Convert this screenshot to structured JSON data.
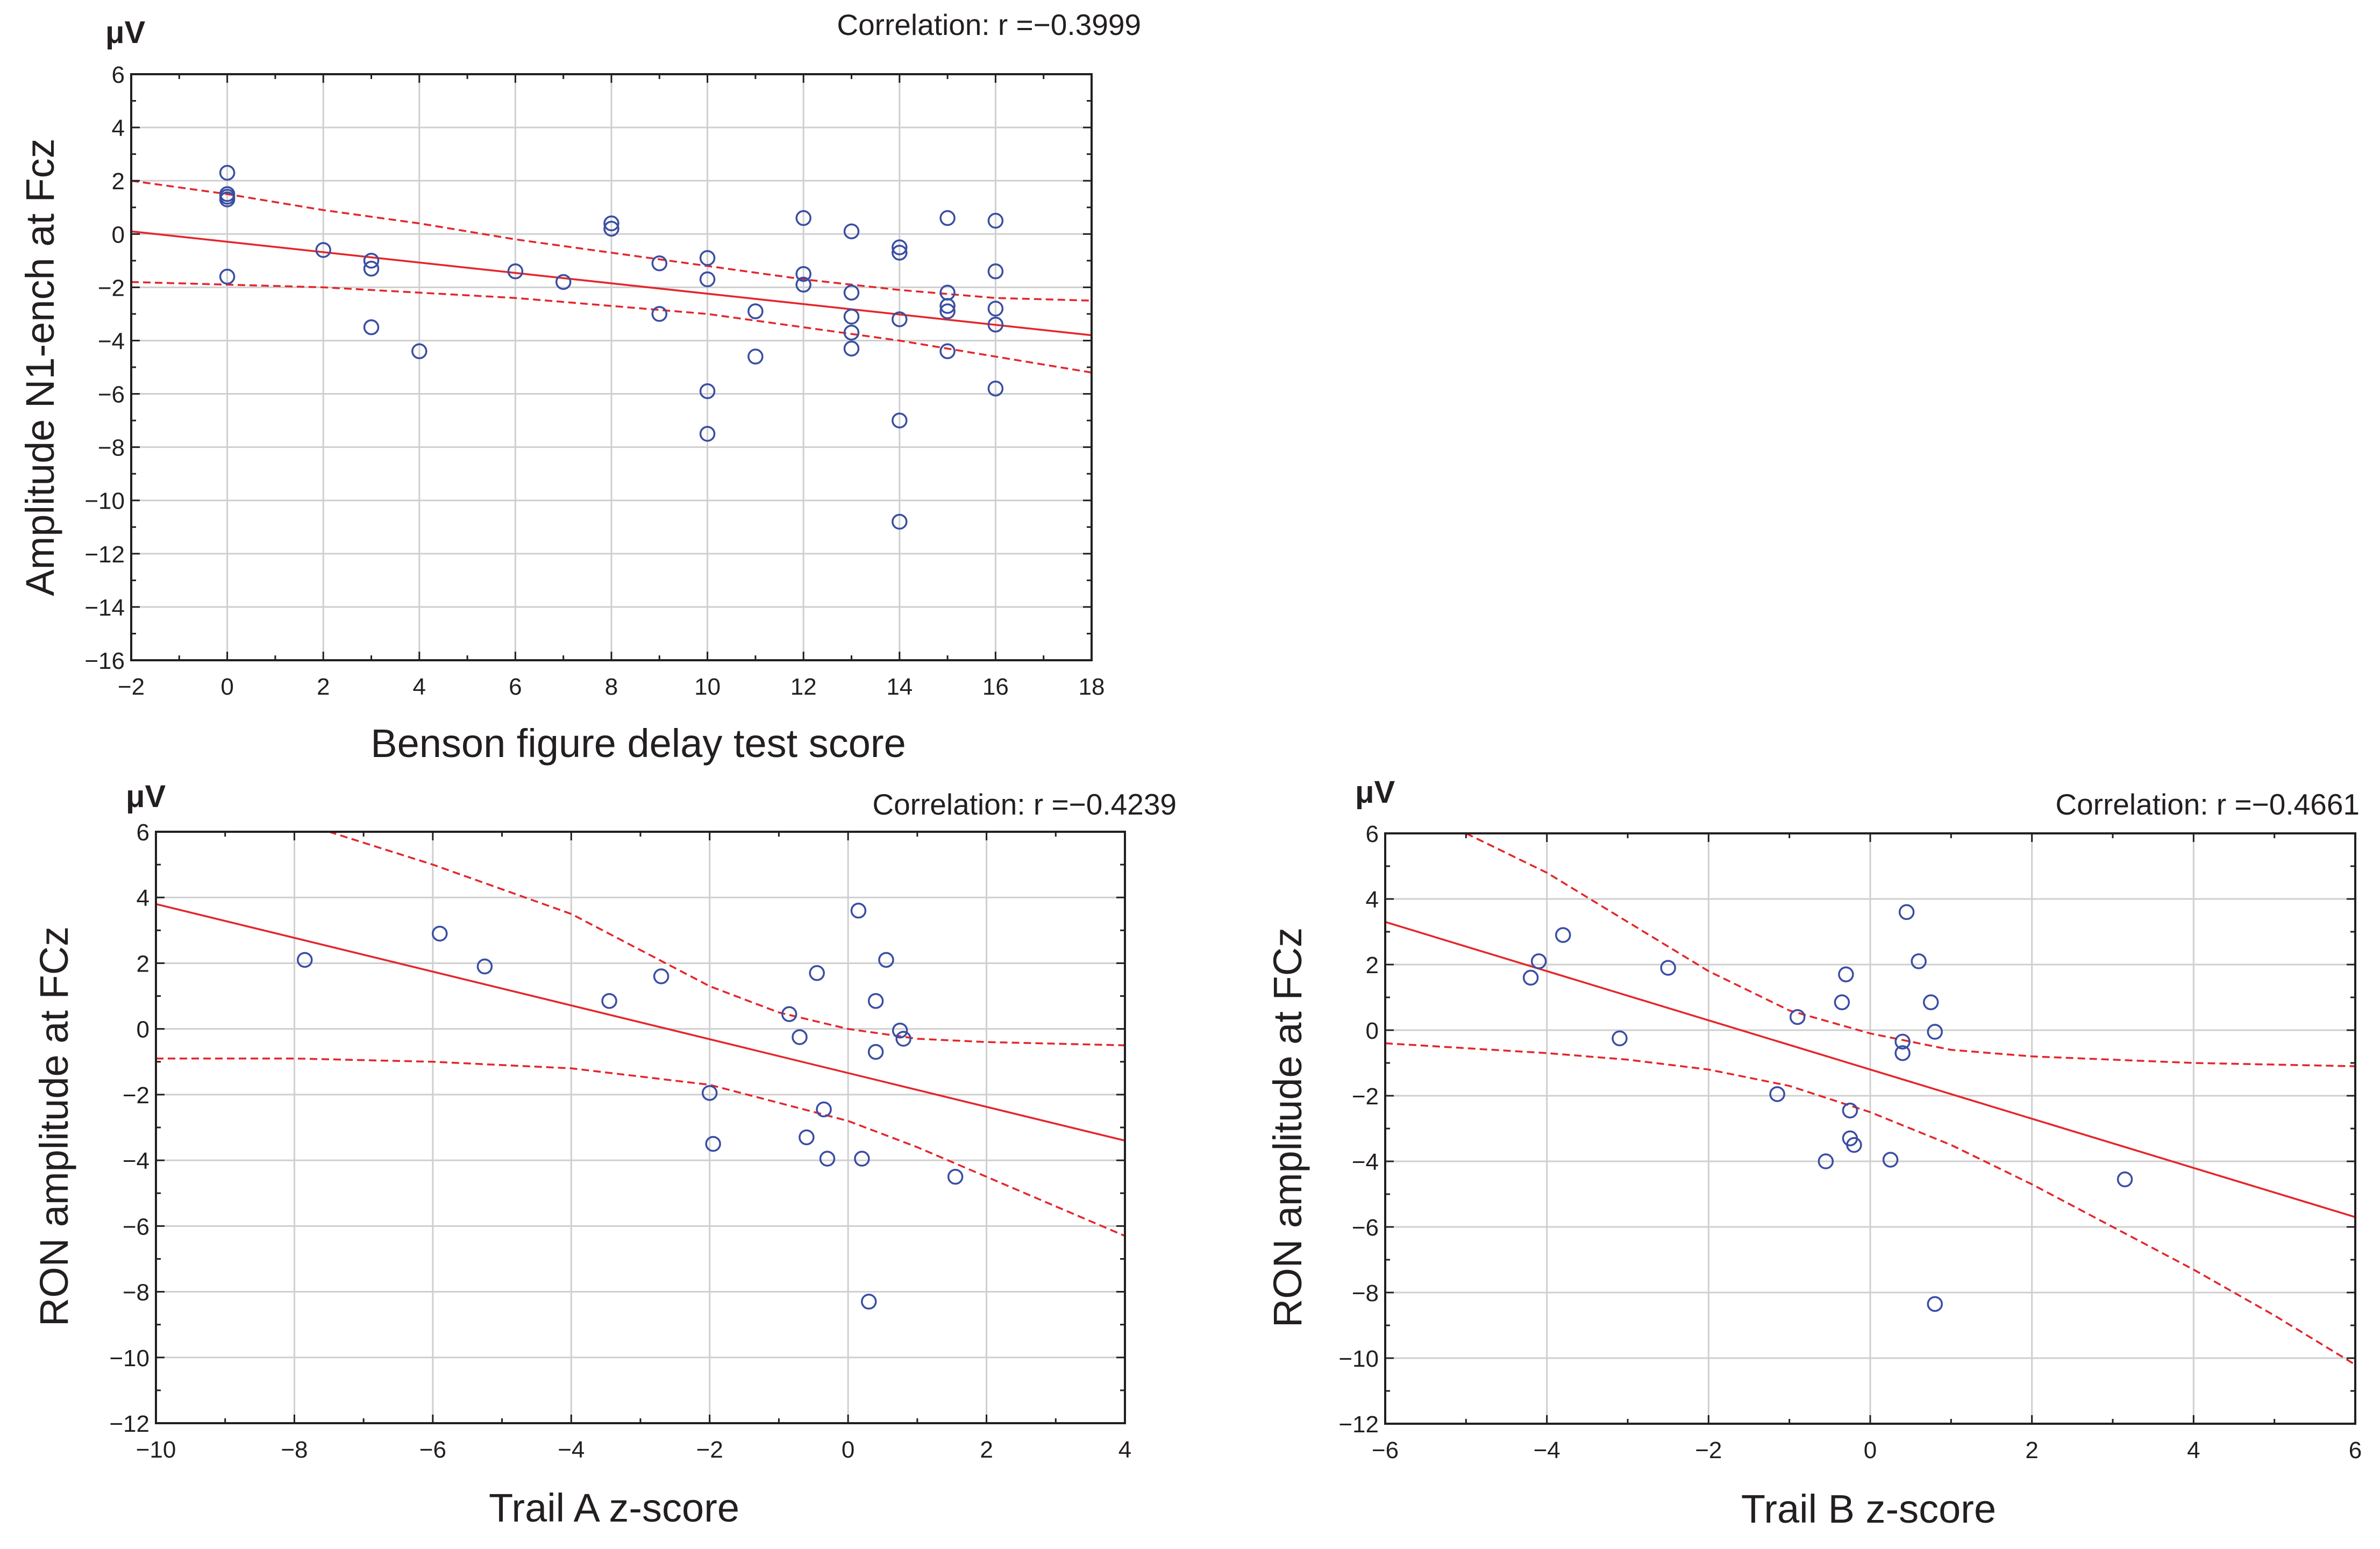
{
  "colors": {
    "point": "#3a4ea3",
    "fit": "#e4262b",
    "grid": "#cfcfcf",
    "axis": "#231f20"
  },
  "chart_data": [
    {
      "type": "scatter",
      "id": "benson",
      "unit": "μV",
      "correlation": "Correlation: r =−0.3999",
      "xlabel": "Benson figure delay test score",
      "ylabel": "Amplitude N1-ench at Fcz",
      "xlim": [
        -2,
        18
      ],
      "ylim": [
        -16,
        6
      ],
      "xticks": [
        -2,
        0,
        2,
        4,
        6,
        8,
        10,
        12,
        14,
        16,
        18
      ],
      "yticks": [
        -16,
        -14,
        -12,
        -10,
        -8,
        -6,
        -4,
        -2,
        0,
        2,
        4,
        6
      ],
      "xtick_labels": [
        "−2",
        "0",
        "2",
        "4",
        "6",
        "8",
        "10",
        "12",
        "14",
        "16",
        "18"
      ],
      "ytick_labels": [
        "−16",
        "−14",
        "−12",
        "−10",
        "−8",
        "−6",
        "−4",
        "−2",
        "0",
        "2",
        "4",
        "6"
      ],
      "fit_line": [
        [
          -2,
          0.1
        ],
        [
          18,
          -3.8
        ]
      ],
      "ci_upper": [
        [
          -2,
          2.0
        ],
        [
          0,
          1.5
        ],
        [
          2,
          0.9
        ],
        [
          4,
          0.4
        ],
        [
          6,
          -0.2
        ],
        [
          8,
          -0.7
        ],
        [
          10,
          -1.2
        ],
        [
          12,
          -1.7
        ],
        [
          14,
          -2.1
        ],
        [
          16,
          -2.4
        ],
        [
          18,
          -2.5
        ]
      ],
      "ci_lower": [
        [
          -2,
          -1.8
        ],
        [
          0,
          -1.9
        ],
        [
          2,
          -2.0
        ],
        [
          4,
          -2.2
        ],
        [
          6,
          -2.4
        ],
        [
          8,
          -2.7
        ],
        [
          10,
          -3.0
        ],
        [
          12,
          -3.5
        ],
        [
          14,
          -4.0
        ],
        [
          16,
          -4.6
        ],
        [
          18,
          -5.2
        ]
      ],
      "points": [
        [
          0,
          2.3
        ],
        [
          0,
          1.5
        ],
        [
          0,
          1.3
        ],
        [
          0,
          1.4
        ],
        [
          0,
          -1.6
        ],
        [
          2,
          -0.6
        ],
        [
          3,
          -1.0
        ],
        [
          3,
          -1.3
        ],
        [
          3,
          -3.5
        ],
        [
          4,
          -4.4
        ],
        [
          6,
          -1.4
        ],
        [
          7,
          -1.8
        ],
        [
          8,
          0.4
        ],
        [
          8,
          0.2
        ],
        [
          9,
          -1.1
        ],
        [
          9,
          -3.0
        ],
        [
          10,
          -0.9
        ],
        [
          10,
          -1.7
        ],
        [
          10,
          -5.9
        ],
        [
          10,
          -7.5
        ],
        [
          11,
          -2.9
        ],
        [
          11,
          -4.6
        ],
        [
          12,
          0.6
        ],
        [
          12,
          -1.5
        ],
        [
          12,
          -1.9
        ],
        [
          13,
          0.1
        ],
        [
          13,
          -2.2
        ],
        [
          13,
          -3.1
        ],
        [
          13,
          -3.7
        ],
        [
          13,
          -4.3
        ],
        [
          14,
          -0.5
        ],
        [
          14,
          -0.7
        ],
        [
          14,
          -3.2
        ],
        [
          14,
          -7.0
        ],
        [
          14,
          -10.8
        ],
        [
          15,
          0.6
        ],
        [
          15,
          -2.2
        ],
        [
          15,
          -2.7
        ],
        [
          15,
          -2.9
        ],
        [
          15,
          -4.4
        ],
        [
          16,
          0.5
        ],
        [
          16,
          -1.4
        ],
        [
          16,
          -2.8
        ],
        [
          16,
          -3.4
        ],
        [
          16,
          -5.8
        ]
      ]
    },
    {
      "type": "scatter",
      "id": "trailA",
      "unit": "μV",
      "correlation": "Correlation: r =−0.4239",
      "xlabel": "Trail A z-score",
      "ylabel": "RON amplitude at FCz",
      "xlim": [
        -10,
        4
      ],
      "ylim": [
        -12,
        6
      ],
      "xticks": [
        -10,
        -8,
        -6,
        -4,
        -2,
        0,
        2,
        4
      ],
      "yticks": [
        -12,
        -10,
        -8,
        -6,
        -4,
        -2,
        0,
        2,
        4,
        6
      ],
      "xtick_labels": [
        "−10",
        "−8",
        "−6",
        "−4",
        "−2",
        "0",
        "2",
        "4"
      ],
      "ytick_labels": [
        "−12",
        "−10",
        "−8",
        "−6",
        "−4",
        "−2",
        "0",
        "2",
        "4",
        "6"
      ],
      "fit_line": [
        [
          -10,
          3.8
        ],
        [
          4,
          -3.4
        ]
      ],
      "ci_upper": [
        [
          -7.5,
          6.0
        ],
        [
          -6,
          5.0
        ],
        [
          -4,
          3.5
        ],
        [
          -2,
          1.3
        ],
        [
          -1,
          0.5
        ],
        [
          0,
          0.0
        ],
        [
          1,
          -0.3
        ],
        [
          2,
          -0.4
        ],
        [
          4,
          -0.5
        ]
      ],
      "ci_lower": [
        [
          -10,
          -0.9
        ],
        [
          -8,
          -0.9
        ],
        [
          -6,
          -1.0
        ],
        [
          -4,
          -1.2
        ],
        [
          -2,
          -1.7
        ],
        [
          0,
          -2.8
        ],
        [
          1,
          -3.6
        ],
        [
          2,
          -4.5
        ],
        [
          4,
          -6.3
        ]
      ],
      "points": [
        [
          -7.85,
          2.1
        ],
        [
          -5.9,
          2.9
        ],
        [
          -5.25,
          1.9
        ],
        [
          -3.45,
          0.85
        ],
        [
          -2.7,
          1.6
        ],
        [
          -2.0,
          -1.95
        ],
        [
          -1.95,
          -3.5
        ],
        [
          -0.85,
          0.45
        ],
        [
          -0.7,
          -0.25
        ],
        [
          -0.6,
          -3.3
        ],
        [
          -0.45,
          1.7
        ],
        [
          -0.35,
          -2.45
        ],
        [
          -0.3,
          -3.95
        ],
        [
          0.15,
          3.6
        ],
        [
          0.2,
          -3.95
        ],
        [
          0.3,
          -8.3
        ],
        [
          0.4,
          0.85
        ],
        [
          0.4,
          -0.7
        ],
        [
          0.55,
          2.1
        ],
        [
          0.75,
          -0.05
        ],
        [
          0.8,
          -0.3
        ],
        [
          1.55,
          -4.5
        ]
      ]
    },
    {
      "type": "scatter",
      "id": "trailB",
      "unit": "μV",
      "correlation": "Correlation: r =−0.4661",
      "xlabel": "Trail B z-score",
      "ylabel": "RON amplitude at FCz",
      "xlim": [
        -6,
        6
      ],
      "ylim": [
        -12,
        6
      ],
      "xticks": [
        -6,
        -4,
        -2,
        0,
        2,
        4,
        6
      ],
      "yticks": [
        -12,
        -10,
        -8,
        -6,
        -4,
        -2,
        0,
        2,
        4,
        6
      ],
      "xtick_labels": [
        "−6",
        "−4",
        "−2",
        "0",
        "2",
        "4",
        "6"
      ],
      "ytick_labels": [
        "−12",
        "−10",
        "−8",
        "−6",
        "−4",
        "−2",
        "0",
        "2",
        "4",
        "6"
      ],
      "fit_line": [
        [
          -6,
          3.3
        ],
        [
          6,
          -5.7
        ]
      ],
      "ci_upper": [
        [
          -5.0,
          6.0
        ],
        [
          -4,
          4.8
        ],
        [
          -3,
          3.3
        ],
        [
          -2,
          1.8
        ],
        [
          -1,
          0.6
        ],
        [
          0,
          -0.1
        ],
        [
          1,
          -0.6
        ],
        [
          2,
          -0.8
        ],
        [
          4,
          -1.0
        ],
        [
          6,
          -1.1
        ]
      ],
      "ci_lower": [
        [
          -6,
          -0.4
        ],
        [
          -4,
          -0.7
        ],
        [
          -3,
          -0.9
        ],
        [
          -2,
          -1.2
        ],
        [
          -1,
          -1.7
        ],
        [
          0,
          -2.5
        ],
        [
          1,
          -3.5
        ],
        [
          2,
          -4.7
        ],
        [
          3,
          -6.0
        ],
        [
          4,
          -7.3
        ],
        [
          5,
          -8.7
        ],
        [
          6,
          -10.2
        ]
      ],
      "points": [
        [
          -4.2,
          1.6
        ],
        [
          -4.1,
          2.1
        ],
        [
          -3.8,
          2.9
        ],
        [
          -3.1,
          -0.25
        ],
        [
          -2.5,
          1.9
        ],
        [
          -1.15,
          -1.95
        ],
        [
          -0.9,
          0.4
        ],
        [
          -0.55,
          -4.0
        ],
        [
          -0.35,
          0.85
        ],
        [
          -0.3,
          1.7
        ],
        [
          -0.25,
          -3.3
        ],
        [
          -0.25,
          -2.45
        ],
        [
          -0.2,
          -3.5
        ],
        [
          0.25,
          -3.95
        ],
        [
          0.4,
          -0.35
        ],
        [
          0.4,
          -0.7
        ],
        [
          0.45,
          3.6
        ],
        [
          0.6,
          2.1
        ],
        [
          0.75,
          0.85
        ],
        [
          0.8,
          -0.05
        ],
        [
          0.8,
          -8.35
        ],
        [
          3.15,
          -4.55
        ]
      ]
    }
  ]
}
